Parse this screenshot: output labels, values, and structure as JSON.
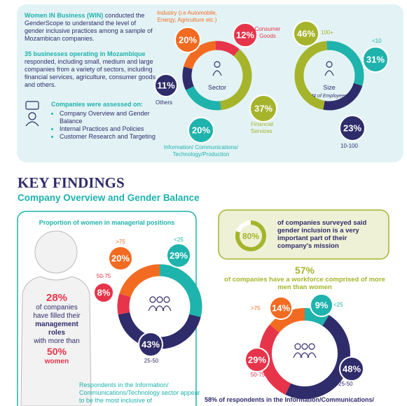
{
  "intro": {
    "win_name": "Women IN Business (WIN)",
    "win_text": " conducted the GenderScope to understand the level of gender inclusive practices among a sample of Mozambican companies.",
    "sample_bold": "35 businesses operating in Mozambique",
    "sample_text": " responded, including small, medium and large companies from a variety of sectors, including financial services, agriculture, consumer goods and others.",
    "assessed_title": "Companies were assessed on:",
    "assessed_items": [
      "Company Overview and Gender Balance",
      "Internal Practices and Policies",
      "Customer Research and Targeting"
    ]
  },
  "key_findings": {
    "title": "KEY FINDINGS",
    "subtitle": "Company Overview and Gender Balance",
    "women_figure": [
      "28%",
      "of companies have filled their",
      "management roles",
      "with more than",
      "50%",
      "women"
    ],
    "ict_note": "Respondents in the Information/ Communications/Technology sector appear to be the most inclusive of",
    "ict_note_2": "58% of respondents in the Information/Communications/"
  },
  "chart_data": [
    {
      "type": "donut",
      "center_label": "Sector",
      "categories": [
        "Industry (i.e Automobile, Energy, Agriculture etc.)",
        "Consumer Goods",
        "Financial Services",
        "Information/ Communications/ Technology/Production",
        "Others"
      ],
      "values": [
        20,
        12,
        37,
        20,
        11
      ],
      "value_labels": [
        "20%",
        "12%",
        "37%",
        "20%",
        "11%"
      ],
      "colors": [
        "#f26b21",
        "#e6344a",
        "#a6b42b",
        "#1eb3ac",
        "#2f2c6b"
      ]
    },
    {
      "type": "donut",
      "center_label": "Size",
      "note": "*# of Employees",
      "categories": [
        "100+",
        "<10",
        "10-100"
      ],
      "values": [
        46,
        31,
        23
      ],
      "value_labels": [
        "46%",
        "31%",
        "23%"
      ],
      "colors": [
        "#a6b42b",
        "#1eb3ac",
        "#2f2c6b"
      ]
    },
    {
      "type": "donut",
      "title": "Proportion of women in managerial positions",
      "categories": [
        "<25",
        "25-50",
        "50-75",
        ">75"
      ],
      "values": [
        29,
        43,
        8,
        20
      ],
      "value_labels": [
        "29%",
        "43%",
        "8%",
        "20%"
      ],
      "colors": [
        "#1eb3ac",
        "#2f2c6b",
        "#e6344a",
        "#f26b21"
      ]
    },
    {
      "type": "donut",
      "headline": "57%",
      "text": "of companies have a workforce comprised of more men than women",
      "categories": [
        "<25",
        "25-50",
        "50-75",
        ">75"
      ],
      "values": [
        9,
        48,
        29,
        14
      ],
      "value_labels": [
        "9%",
        "48%",
        "29%",
        "14%"
      ],
      "colors": [
        "#1eb3ac",
        "#2f2c6b",
        "#e6344a",
        "#f26b21"
      ]
    },
    {
      "type": "gauge",
      "values": [
        80
      ],
      "value_labels": [
        "80%"
      ],
      "text": "of companies surveyed said gender inclusion is a very important part of their company's mission",
      "colors": [
        "#a6b42b"
      ]
    }
  ]
}
